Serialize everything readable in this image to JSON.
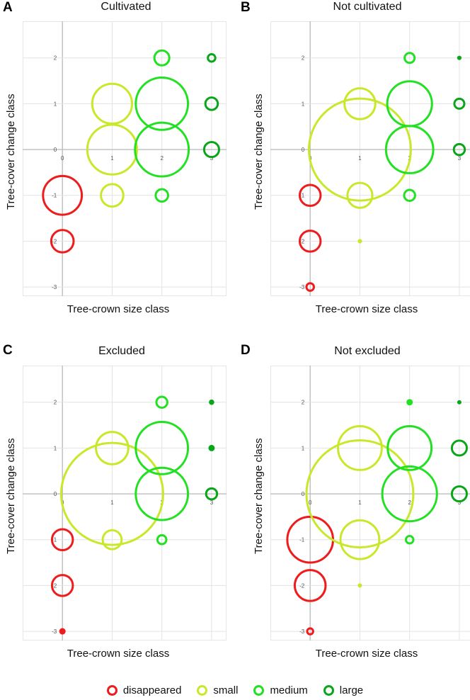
{
  "legend": [
    {
      "key": "disappeared",
      "label": "disappeared",
      "color": "#ee1c1c"
    },
    {
      "key": "small",
      "label": "small",
      "color": "#c8e82a"
    },
    {
      "key": "medium",
      "label": "medium",
      "color": "#22e022"
    },
    {
      "key": "large",
      "label": "large",
      "color": "#0aa61a"
    }
  ],
  "chart_data": [
    {
      "panel": "A",
      "type": "bubble",
      "title": "Cultivated",
      "xlabel": "Tree-crown size class",
      "ylabel": "Tree-cover change class",
      "xlim": [
        -0.8,
        3.3
      ],
      "ylim": [
        -3.2,
        2.8
      ],
      "xticks": [
        0,
        1,
        2,
        3
      ],
      "yticks": [
        -3,
        -2,
        -1,
        0,
        1,
        2
      ],
      "points": [
        {
          "x": 0,
          "y": -1,
          "r": 0.78,
          "category": "disappeared"
        },
        {
          "x": 0,
          "y": -2,
          "r": 0.45,
          "category": "disappeared"
        },
        {
          "x": 1,
          "y": 1,
          "r": 0.8,
          "category": "small"
        },
        {
          "x": 1,
          "y": 0,
          "r": 1.0,
          "category": "small"
        },
        {
          "x": 1,
          "y": -1,
          "r": 0.45,
          "category": "small"
        },
        {
          "x": 2,
          "y": 2,
          "r": 0.3,
          "category": "medium"
        },
        {
          "x": 2,
          "y": 1,
          "r": 1.05,
          "category": "medium"
        },
        {
          "x": 2,
          "y": 0,
          "r": 1.08,
          "category": "medium"
        },
        {
          "x": 2,
          "y": -1,
          "r": 0.25,
          "category": "medium"
        },
        {
          "x": 3,
          "y": 2,
          "r": 0.15,
          "category": "large"
        },
        {
          "x": 3,
          "y": 1,
          "r": 0.25,
          "category": "large"
        },
        {
          "x": 3,
          "y": 0,
          "r": 0.3,
          "category": "large"
        }
      ]
    },
    {
      "panel": "B",
      "type": "bubble",
      "title": "Not cultivated",
      "xlabel": "Tree-crown size class",
      "ylabel": "Tree-cover change class",
      "xlim": [
        -0.8,
        3.3
      ],
      "ylim": [
        -3.2,
        2.8
      ],
      "xticks": [
        0,
        1,
        2,
        3
      ],
      "yticks": [
        -3,
        -2,
        -1,
        0,
        1,
        2
      ],
      "points": [
        {
          "x": 0,
          "y": -1,
          "r": 0.42,
          "category": "disappeared"
        },
        {
          "x": 0,
          "y": -2,
          "r": 0.42,
          "category": "disappeared"
        },
        {
          "x": 0,
          "y": -3,
          "r": 0.15,
          "category": "disappeared"
        },
        {
          "x": 1,
          "y": 1,
          "r": 0.62,
          "category": "small"
        },
        {
          "x": 1,
          "y": 0,
          "r": 2.05,
          "category": "small"
        },
        {
          "x": 1,
          "y": -1,
          "r": 0.5,
          "category": "small"
        },
        {
          "x": 1,
          "y": -2,
          "r": 0.06,
          "category": "small"
        },
        {
          "x": 2,
          "y": 2,
          "r": 0.2,
          "category": "medium"
        },
        {
          "x": 2,
          "y": 1,
          "r": 0.9,
          "category": "medium"
        },
        {
          "x": 2,
          "y": 0,
          "r": 0.95,
          "category": "medium"
        },
        {
          "x": 2,
          "y": -1,
          "r": 0.22,
          "category": "medium"
        },
        {
          "x": 3,
          "y": 2,
          "r": 0.06,
          "category": "large"
        },
        {
          "x": 3,
          "y": 1,
          "r": 0.2,
          "category": "large"
        },
        {
          "x": 3,
          "y": 0,
          "r": 0.22,
          "category": "large"
        }
      ]
    },
    {
      "panel": "C",
      "type": "bubble",
      "title": "Excluded",
      "xlabel": "Tree-crown size class",
      "ylabel": "Tree-cover change class",
      "xlim": [
        -0.8,
        3.3
      ],
      "ylim": [
        -3.2,
        2.8
      ],
      "xticks": [
        0,
        1,
        2,
        3
      ],
      "yticks": [
        -3,
        -2,
        -1,
        0,
        1,
        2
      ],
      "points": [
        {
          "x": 0,
          "y": -1,
          "r": 0.42,
          "category": "disappeared"
        },
        {
          "x": 0,
          "y": -2,
          "r": 0.42,
          "category": "disappeared"
        },
        {
          "x": 0,
          "y": -3,
          "r": 0.1,
          "category": "disappeared"
        },
        {
          "x": 1,
          "y": 1,
          "r": 0.65,
          "category": "small"
        },
        {
          "x": 1,
          "y": 0,
          "r": 2.05,
          "category": "small"
        },
        {
          "x": 1,
          "y": -1,
          "r": 0.38,
          "category": "small"
        },
        {
          "x": 2,
          "y": 2,
          "r": 0.22,
          "category": "medium"
        },
        {
          "x": 2,
          "y": 1,
          "r": 1.05,
          "category": "medium"
        },
        {
          "x": 2,
          "y": 0,
          "r": 1.05,
          "category": "medium"
        },
        {
          "x": 2,
          "y": -1,
          "r": 0.18,
          "category": "medium"
        },
        {
          "x": 3,
          "y": 2,
          "r": 0.08,
          "category": "large"
        },
        {
          "x": 3,
          "y": 1,
          "r": 0.1,
          "category": "large"
        },
        {
          "x": 3,
          "y": 0,
          "r": 0.22,
          "category": "large"
        }
      ]
    },
    {
      "panel": "D",
      "type": "bubble",
      "title": "Not excluded",
      "xlabel": "Tree-crown size class",
      "ylabel": "Tree-cover change class",
      "xlim": [
        -0.8,
        3.3
      ],
      "ylim": [
        -3.2,
        2.8
      ],
      "xticks": [
        0,
        1,
        2,
        3
      ],
      "yticks": [
        -3,
        -2,
        -1,
        0,
        1,
        2
      ],
      "points": [
        {
          "x": 0,
          "y": -1,
          "r": 0.92,
          "category": "disappeared"
        },
        {
          "x": 0,
          "y": -2,
          "r": 0.62,
          "category": "disappeared"
        },
        {
          "x": 0,
          "y": -3,
          "r": 0.12,
          "category": "disappeared"
        },
        {
          "x": 1,
          "y": 1,
          "r": 0.88,
          "category": "small"
        },
        {
          "x": 1,
          "y": 0,
          "r": 2.15,
          "category": "small"
        },
        {
          "x": 1,
          "y": -1,
          "r": 0.78,
          "category": "small"
        },
        {
          "x": 1,
          "y": -2,
          "r": 0.04,
          "category": "small"
        },
        {
          "x": 2,
          "y": 2,
          "r": 0.1,
          "category": "medium"
        },
        {
          "x": 2,
          "y": 1,
          "r": 0.88,
          "category": "medium"
        },
        {
          "x": 2,
          "y": 0,
          "r": 1.1,
          "category": "medium"
        },
        {
          "x": 2,
          "y": -1,
          "r": 0.15,
          "category": "medium"
        },
        {
          "x": 3,
          "y": 2,
          "r": 0.05,
          "category": "large"
        },
        {
          "x": 3,
          "y": 1,
          "r": 0.3,
          "category": "large"
        },
        {
          "x": 3,
          "y": 0,
          "r": 0.3,
          "category": "large"
        }
      ]
    }
  ]
}
